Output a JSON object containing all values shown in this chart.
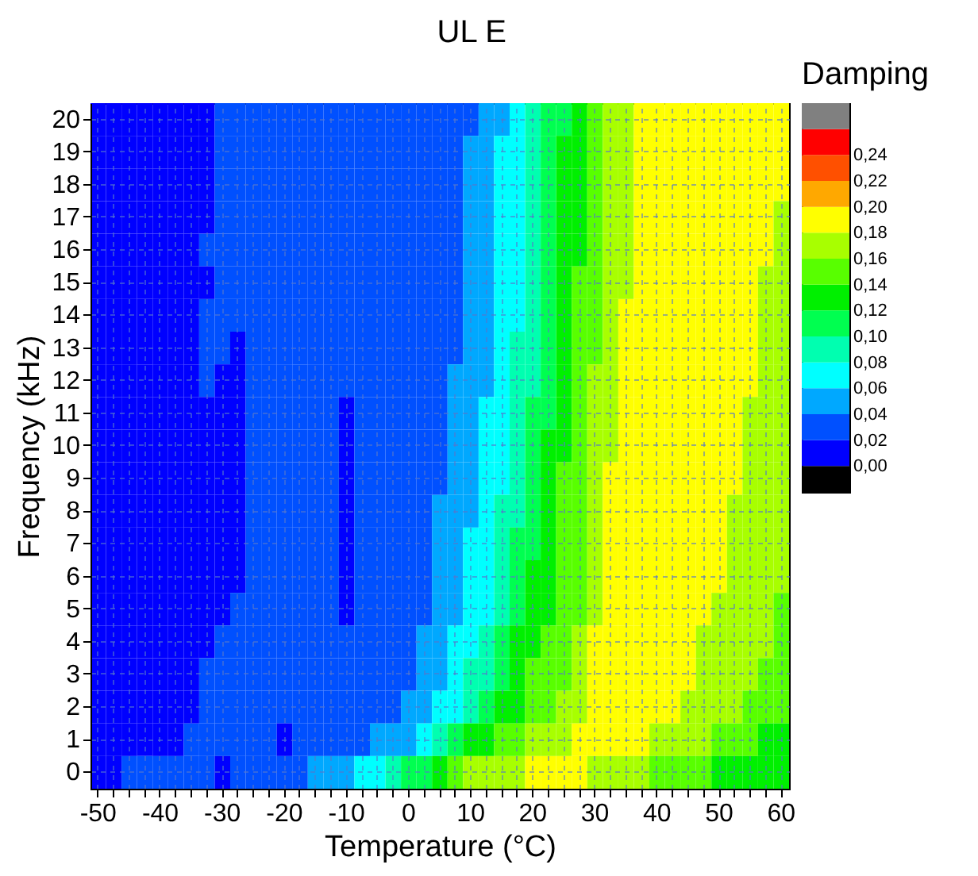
{
  "chart_data": {
    "type": "heatmap",
    "title": "UL E",
    "xlabel": "Temperature (°C)",
    "ylabel": "Frequency (kHz)",
    "clabel": "Damping",
    "grid": true,
    "categories": [
      "-50",
      null,
      null,
      null,
      "-40",
      null,
      null,
      null,
      "-30",
      null,
      null,
      null,
      "-20",
      null,
      null,
      null,
      "-10",
      null,
      null,
      null,
      "0",
      null,
      null,
      null,
      "10",
      null,
      null,
      null,
      "20",
      null,
      null,
      null,
      "30",
      null,
      null,
      null,
      "40",
      null,
      null,
      null,
      "50",
      null,
      null,
      null,
      "60"
    ],
    "y_categories": [
      "20",
      "19",
      "18",
      "17",
      "16",
      "15",
      "14",
      "13",
      "12",
      "11",
      "10",
      "9",
      "8",
      "7",
      "6",
      "5",
      "4",
      "3",
      "2",
      "1",
      "0"
    ],
    "cells": [
      [
        0.01,
        0.01,
        0.01,
        0.01,
        0.01,
        0.01,
        0.01,
        0.01,
        0.03,
        0.03,
        0.03,
        0.03,
        0.03,
        0.03,
        0.03,
        0.03,
        0.03,
        0.03,
        0.03,
        0.03,
        0.03,
        0.03,
        0.03,
        0.03,
        0.03,
        0.05,
        0.05,
        0.07,
        0.09,
        0.11,
        0.11,
        0.13,
        0.15,
        0.17,
        0.17,
        0.19,
        0.19,
        0.19,
        0.19,
        0.19,
        0.19,
        0.19,
        0.19,
        0.19,
        0.19
      ],
      [
        0.01,
        0.01,
        0.01,
        0.01,
        0.01,
        0.01,
        0.01,
        0.01,
        0.03,
        0.03,
        0.03,
        0.03,
        0.03,
        0.03,
        0.03,
        0.03,
        0.03,
        0.03,
        0.03,
        0.03,
        0.03,
        0.03,
        0.03,
        0.03,
        0.05,
        0.05,
        0.07,
        0.07,
        0.09,
        0.11,
        0.13,
        0.13,
        0.15,
        0.17,
        0.17,
        0.19,
        0.19,
        0.19,
        0.19,
        0.19,
        0.19,
        0.19,
        0.19,
        0.19,
        0.19
      ],
      [
        0.01,
        0.01,
        0.01,
        0.01,
        0.01,
        0.01,
        0.01,
        0.01,
        0.03,
        0.03,
        0.03,
        0.03,
        0.03,
        0.03,
        0.03,
        0.03,
        0.03,
        0.03,
        0.03,
        0.03,
        0.03,
        0.03,
        0.03,
        0.03,
        0.05,
        0.05,
        0.07,
        0.07,
        0.09,
        0.11,
        0.13,
        0.13,
        0.15,
        0.17,
        0.17,
        0.19,
        0.19,
        0.19,
        0.19,
        0.19,
        0.19,
        0.19,
        0.19,
        0.19,
        0.19
      ],
      [
        0.01,
        0.01,
        0.01,
        0.01,
        0.01,
        0.01,
        0.01,
        0.01,
        0.03,
        0.03,
        0.03,
        0.03,
        0.03,
        0.03,
        0.03,
        0.03,
        0.03,
        0.03,
        0.03,
        0.03,
        0.03,
        0.03,
        0.03,
        0.03,
        0.05,
        0.05,
        0.07,
        0.07,
        0.09,
        0.11,
        0.13,
        0.13,
        0.15,
        0.17,
        0.17,
        0.19,
        0.19,
        0.19,
        0.19,
        0.19,
        0.19,
        0.19,
        0.19,
        0.19,
        0.17
      ],
      [
        0.01,
        0.01,
        0.01,
        0.01,
        0.01,
        0.01,
        0.01,
        0.03,
        0.03,
        0.03,
        0.03,
        0.03,
        0.03,
        0.03,
        0.03,
        0.03,
        0.03,
        0.03,
        0.03,
        0.03,
        0.03,
        0.03,
        0.03,
        0.03,
        0.05,
        0.05,
        0.07,
        0.07,
        0.09,
        0.11,
        0.13,
        0.13,
        0.15,
        0.17,
        0.17,
        0.19,
        0.19,
        0.19,
        0.19,
        0.19,
        0.19,
        0.19,
        0.19,
        0.19,
        0.17
      ],
      [
        0.01,
        0.01,
        0.01,
        0.01,
        0.01,
        0.01,
        0.01,
        0.01,
        0.03,
        0.03,
        0.03,
        0.03,
        0.03,
        0.03,
        0.03,
        0.03,
        0.03,
        0.03,
        0.03,
        0.03,
        0.03,
        0.03,
        0.03,
        0.03,
        0.05,
        0.05,
        0.07,
        0.07,
        0.09,
        0.11,
        0.13,
        0.15,
        0.15,
        0.17,
        0.17,
        0.19,
        0.19,
        0.19,
        0.19,
        0.19,
        0.19,
        0.19,
        0.19,
        0.17,
        0.17
      ],
      [
        0.01,
        0.01,
        0.01,
        0.01,
        0.01,
        0.01,
        0.01,
        0.03,
        0.03,
        0.03,
        0.03,
        0.03,
        0.03,
        0.03,
        0.03,
        0.03,
        0.03,
        0.03,
        0.03,
        0.03,
        0.03,
        0.03,
        0.03,
        0.03,
        0.05,
        0.05,
        0.07,
        0.07,
        0.09,
        0.11,
        0.13,
        0.15,
        0.15,
        0.17,
        0.19,
        0.19,
        0.19,
        0.19,
        0.19,
        0.19,
        0.19,
        0.19,
        0.19,
        0.17,
        0.17
      ],
      [
        0.01,
        0.01,
        0.01,
        0.01,
        0.01,
        0.01,
        0.01,
        0.03,
        0.03,
        0.01,
        0.03,
        0.03,
        0.03,
        0.03,
        0.03,
        0.03,
        0.03,
        0.03,
        0.03,
        0.03,
        0.03,
        0.03,
        0.03,
        0.03,
        0.05,
        0.05,
        0.07,
        0.09,
        0.09,
        0.11,
        0.13,
        0.15,
        0.15,
        0.17,
        0.19,
        0.19,
        0.19,
        0.19,
        0.19,
        0.19,
        0.19,
        0.19,
        0.19,
        0.17,
        0.17
      ],
      [
        0.01,
        0.01,
        0.01,
        0.01,
        0.01,
        0.01,
        0.01,
        0.03,
        0.01,
        0.01,
        0.03,
        0.03,
        0.03,
        0.03,
        0.03,
        0.03,
        0.03,
        0.03,
        0.03,
        0.03,
        0.03,
        0.03,
        0.03,
        0.05,
        0.05,
        0.05,
        0.07,
        0.09,
        0.09,
        0.11,
        0.13,
        0.15,
        0.17,
        0.17,
        0.19,
        0.19,
        0.19,
        0.19,
        0.19,
        0.19,
        0.19,
        0.19,
        0.19,
        0.17,
        0.17
      ],
      [
        0.01,
        0.01,
        0.01,
        0.01,
        0.01,
        0.01,
        0.01,
        0.01,
        0.01,
        0.01,
        0.03,
        0.03,
        0.03,
        0.03,
        0.03,
        0.03,
        0.01,
        0.03,
        0.03,
        0.03,
        0.03,
        0.03,
        0.03,
        0.05,
        0.05,
        0.07,
        0.07,
        0.09,
        0.11,
        0.11,
        0.13,
        0.15,
        0.17,
        0.17,
        0.19,
        0.19,
        0.19,
        0.19,
        0.19,
        0.19,
        0.19,
        0.19,
        0.17,
        0.17,
        0.17
      ],
      [
        0.01,
        0.01,
        0.01,
        0.01,
        0.01,
        0.01,
        0.01,
        0.01,
        0.01,
        0.01,
        0.03,
        0.03,
        0.03,
        0.03,
        0.03,
        0.03,
        0.01,
        0.03,
        0.03,
        0.03,
        0.03,
        0.03,
        0.03,
        0.05,
        0.05,
        0.07,
        0.07,
        0.09,
        0.11,
        0.13,
        0.13,
        0.15,
        0.17,
        0.17,
        0.19,
        0.19,
        0.19,
        0.19,
        0.19,
        0.19,
        0.19,
        0.19,
        0.17,
        0.17,
        0.17
      ],
      [
        0.01,
        0.01,
        0.01,
        0.01,
        0.01,
        0.01,
        0.01,
        0.01,
        0.01,
        0.01,
        0.03,
        0.03,
        0.03,
        0.03,
        0.03,
        0.03,
        0.01,
        0.03,
        0.03,
        0.03,
        0.03,
        0.03,
        0.03,
        0.05,
        0.05,
        0.07,
        0.07,
        0.09,
        0.11,
        0.13,
        0.15,
        0.15,
        0.17,
        0.19,
        0.19,
        0.19,
        0.19,
        0.19,
        0.19,
        0.19,
        0.19,
        0.19,
        0.17,
        0.17,
        0.17
      ],
      [
        0.01,
        0.01,
        0.01,
        0.01,
        0.01,
        0.01,
        0.01,
        0.01,
        0.01,
        0.01,
        0.03,
        0.03,
        0.03,
        0.03,
        0.03,
        0.03,
        0.01,
        0.03,
        0.03,
        0.03,
        0.03,
        0.03,
        0.05,
        0.05,
        0.05,
        0.07,
        0.09,
        0.09,
        0.11,
        0.13,
        0.15,
        0.15,
        0.17,
        0.19,
        0.19,
        0.19,
        0.19,
        0.19,
        0.19,
        0.19,
        0.19,
        0.17,
        0.17,
        0.17,
        0.17
      ],
      [
        0.01,
        0.01,
        0.01,
        0.01,
        0.01,
        0.01,
        0.01,
        0.01,
        0.01,
        0.01,
        0.03,
        0.03,
        0.03,
        0.03,
        0.03,
        0.03,
        0.01,
        0.03,
        0.03,
        0.03,
        0.03,
        0.03,
        0.05,
        0.05,
        0.07,
        0.07,
        0.09,
        0.11,
        0.11,
        0.13,
        0.15,
        0.15,
        0.17,
        0.19,
        0.19,
        0.19,
        0.19,
        0.19,
        0.19,
        0.19,
        0.19,
        0.17,
        0.17,
        0.17,
        0.17
      ],
      [
        0.01,
        0.01,
        0.01,
        0.01,
        0.01,
        0.01,
        0.01,
        0.01,
        0.01,
        0.01,
        0.03,
        0.03,
        0.03,
        0.03,
        0.03,
        0.03,
        0.01,
        0.03,
        0.03,
        0.03,
        0.03,
        0.03,
        0.05,
        0.05,
        0.07,
        0.07,
        0.09,
        0.11,
        0.13,
        0.13,
        0.15,
        0.15,
        0.17,
        0.19,
        0.19,
        0.19,
        0.19,
        0.19,
        0.19,
        0.19,
        0.19,
        0.17,
        0.17,
        0.17,
        0.17
      ],
      [
        0.01,
        0.01,
        0.01,
        0.01,
        0.01,
        0.01,
        0.01,
        0.01,
        0.01,
        0.03,
        0.03,
        0.03,
        0.03,
        0.03,
        0.03,
        0.03,
        0.01,
        0.03,
        0.03,
        0.03,
        0.03,
        0.03,
        0.05,
        0.05,
        0.07,
        0.07,
        0.09,
        0.11,
        0.13,
        0.13,
        0.15,
        0.15,
        0.17,
        0.19,
        0.19,
        0.19,
        0.19,
        0.19,
        0.19,
        0.19,
        0.17,
        0.17,
        0.17,
        0.17,
        0.15
      ],
      [
        0.01,
        0.01,
        0.01,
        0.01,
        0.01,
        0.01,
        0.01,
        0.01,
        0.03,
        0.03,
        0.03,
        0.03,
        0.03,
        0.03,
        0.03,
        0.03,
        0.03,
        0.03,
        0.03,
        0.03,
        0.03,
        0.05,
        0.05,
        0.07,
        0.07,
        0.09,
        0.11,
        0.13,
        0.13,
        0.15,
        0.15,
        0.17,
        0.19,
        0.19,
        0.19,
        0.19,
        0.19,
        0.19,
        0.19,
        0.17,
        0.17,
        0.17,
        0.17,
        0.17,
        0.15
      ],
      [
        0.01,
        0.01,
        0.01,
        0.01,
        0.01,
        0.01,
        0.01,
        0.03,
        0.03,
        0.03,
        0.03,
        0.03,
        0.03,
        0.03,
        0.03,
        0.03,
        0.03,
        0.03,
        0.03,
        0.03,
        0.03,
        0.05,
        0.05,
        0.07,
        0.09,
        0.09,
        0.11,
        0.13,
        0.15,
        0.15,
        0.15,
        0.17,
        0.19,
        0.19,
        0.19,
        0.19,
        0.19,
        0.19,
        0.19,
        0.17,
        0.17,
        0.17,
        0.17,
        0.15,
        0.15
      ],
      [
        0.01,
        0.01,
        0.01,
        0.01,
        0.01,
        0.01,
        0.01,
        0.03,
        0.03,
        0.03,
        0.03,
        0.03,
        0.03,
        0.03,
        0.03,
        0.03,
        0.03,
        0.03,
        0.03,
        0.03,
        0.05,
        0.05,
        0.07,
        0.07,
        0.09,
        0.11,
        0.13,
        0.13,
        0.15,
        0.15,
        0.17,
        0.17,
        0.19,
        0.19,
        0.19,
        0.19,
        0.19,
        0.19,
        0.17,
        0.17,
        0.17,
        0.17,
        0.15,
        0.15,
        0.15
      ],
      [
        0.01,
        0.01,
        0.01,
        0.01,
        0.01,
        0.01,
        0.03,
        0.03,
        0.03,
        0.03,
        0.03,
        0.03,
        0.01,
        0.03,
        0.03,
        0.03,
        0.03,
        0.03,
        0.05,
        0.05,
        0.05,
        0.07,
        0.09,
        0.11,
        0.13,
        0.13,
        0.15,
        0.15,
        0.17,
        0.17,
        0.17,
        0.19,
        0.19,
        0.19,
        0.19,
        0.19,
        0.17,
        0.17,
        0.17,
        0.17,
        0.15,
        0.15,
        0.15,
        0.13,
        0.13
      ],
      [
        0.01,
        0.01,
        0.03,
        0.03,
        0.03,
        0.03,
        0.03,
        0.03,
        0.01,
        0.03,
        0.03,
        0.03,
        0.03,
        0.03,
        0.05,
        0.05,
        0.05,
        0.07,
        0.07,
        0.09,
        0.11,
        0.11,
        0.13,
        0.15,
        0.17,
        0.17,
        0.17,
        0.17,
        0.19,
        0.19,
        0.19,
        0.19,
        0.17,
        0.17,
        0.17,
        0.17,
        0.15,
        0.15,
        0.15,
        0.15,
        0.13,
        0.13,
        0.13,
        0.13,
        0.13
      ]
    ],
    "clim": [
      -0.02,
      0.28
    ],
    "cticks": [
      {
        "value": 0,
        "label": "0,00"
      },
      {
        "value": 0.02,
        "label": "0,02"
      },
      {
        "value": 0.04,
        "label": "0,04"
      },
      {
        "value": 0.06,
        "label": "0,06"
      },
      {
        "value": 0.08,
        "label": "0,08"
      },
      {
        "value": 0.1,
        "label": "0,10"
      },
      {
        "value": 0.12,
        "label": "0,12"
      },
      {
        "value": 0.14,
        "label": "0,14"
      },
      {
        "value": 0.16,
        "label": "0,16"
      },
      {
        "value": 0.18,
        "label": "0,18"
      },
      {
        "value": 0.2,
        "label": "0,20"
      },
      {
        "value": 0.22,
        "label": "0,22"
      },
      {
        "value": 0.24,
        "label": "0,24"
      },
      {
        "value": 0.26,
        "label": null
      }
    ],
    "colors": [
      "#000000",
      "#0000ff",
      "#0050ff",
      "#00a8ff",
      "#00ffff",
      "#00ffb0",
      "#00ff50",
      "#00f000",
      "#58ff00",
      "#a8ff00",
      "#ffff00",
      "#ffa800",
      "#ff5000",
      "#ff0000",
      "#808080"
    ]
  }
}
